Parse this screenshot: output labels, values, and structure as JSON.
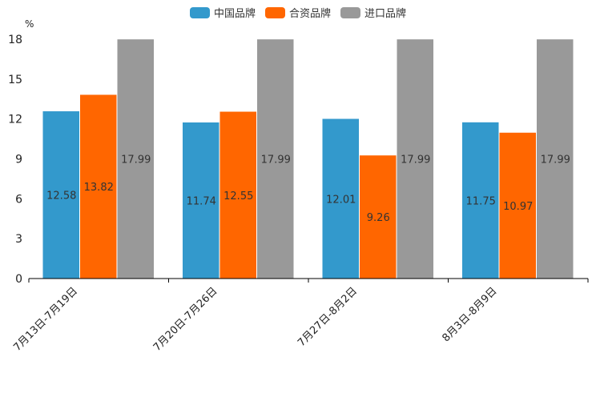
{
  "chart_data": {
    "type": "bar",
    "unit": "%",
    "categories": [
      "7月13日-7月19日",
      "7月20日-7月26日",
      "7月27日-8月2日",
      "8月3日-8月9日"
    ],
    "series": [
      {
        "name": "中国品牌",
        "color": "#3399cc",
        "values": [
          12.58,
          11.74,
          12.01,
          11.75
        ]
      },
      {
        "name": "合资品牌",
        "color": "#ff6600",
        "values": [
          13.82,
          12.55,
          9.26,
          10.97
        ]
      },
      {
        "name": "进口品牌",
        "color": "#999999",
        "values": [
          17.99,
          17.99,
          17.99,
          17.99
        ]
      }
    ],
    "yticks": [
      "0",
      "3",
      "6",
      "9",
      "12",
      "15",
      "18"
    ],
    "ylim": [
      0,
      18
    ],
    "legend_position": "top-center",
    "grid": false
  }
}
